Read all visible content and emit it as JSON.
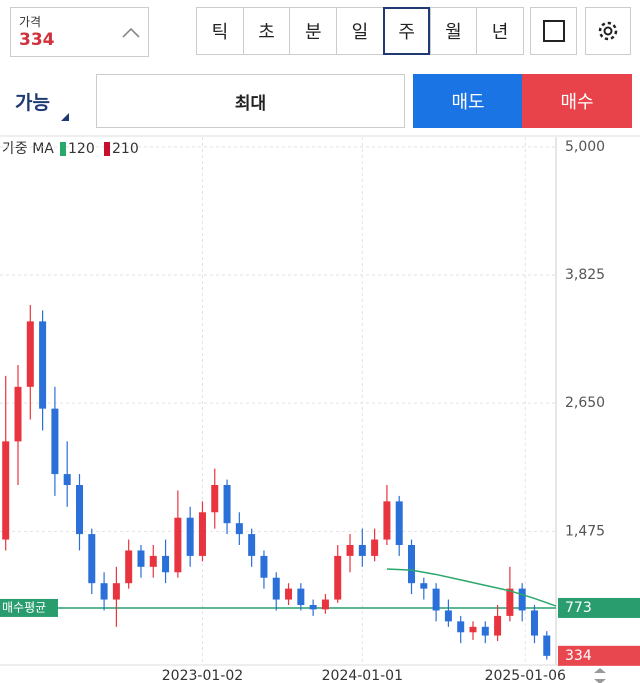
{
  "header": {
    "price_label": "가격",
    "price": "334",
    "intervals": [
      "틱",
      "초",
      "분",
      "일",
      "주",
      "월",
      "년"
    ],
    "selected_interval": 4
  },
  "order": {
    "available": "가능",
    "quantity": "최대",
    "sell": "매도",
    "buy": "매수"
  },
  "chart_data": {
    "type": "candlestick",
    "legend_title": "가중 MA",
    "x": [
      "2021-10-11",
      "2021-11-08",
      "2021-12-06",
      "2022-01-03",
      "2022-01-31",
      "2022-02-28",
      "2022-03-28",
      "2022-04-25",
      "2022-05-23",
      "2022-06-20",
      "2022-07-18",
      "2022-08-15",
      "2022-09-12",
      "2022-10-10",
      "2022-11-07",
      "2022-12-05",
      "2023-01-02",
      "2023-01-30",
      "2023-02-27",
      "2023-03-27",
      "2023-04-24",
      "2023-05-22",
      "2023-06-19",
      "2023-07-17",
      "2023-08-14",
      "2023-09-11",
      "2023-10-09",
      "2023-11-06",
      "2023-12-04",
      "2024-01-01",
      "2024-01-29",
      "2024-02-26",
      "2024-03-25",
      "2024-04-22",
      "2024-05-20",
      "2024-06-17",
      "2024-07-15",
      "2024-08-12",
      "2024-09-09",
      "2024-10-07",
      "2024-11-04",
      "2024-12-02",
      "2024-12-30",
      "2025-01-27",
      "2025-02-24"
    ],
    "open": [
      1400,
      2300,
      2800,
      3400,
      2600,
      2000,
      1900,
      1450,
      1000,
      850,
      1000,
      1300,
      1150,
      1250,
      1100,
      1600,
      1250,
      1650,
      1900,
      1550,
      1450,
      1250,
      1050,
      850,
      950,
      800,
      760,
      850,
      1250,
      1350,
      1250,
      1400,
      1750,
      1350,
      1000,
      950,
      750,
      650,
      550,
      600,
      520,
      700,
      950,
      750,
      520
    ],
    "high": [
      2900,
      3000,
      3550,
      3500,
      2800,
      2300,
      2000,
      1500,
      1100,
      1150,
      1400,
      1350,
      1350,
      1400,
      1850,
      1700,
      1750,
      2050,
      1950,
      1650,
      1500,
      1300,
      1100,
      1000,
      1000,
      850,
      900,
      1350,
      1450,
      1500,
      1500,
      1900,
      1800,
      1400,
      1050,
      1000,
      850,
      700,
      650,
      650,
      800,
      1150,
      1000,
      800,
      560
    ],
    "low": [
      1300,
      1900,
      2500,
      2400,
      1800,
      1700,
      1300,
      900,
      750,
      600,
      950,
      1050,
      1050,
      1000,
      1050,
      1150,
      1200,
      1500,
      1450,
      1350,
      1150,
      950,
      750,
      800,
      750,
      700,
      720,
      820,
      1100,
      1150,
      1200,
      1350,
      1250,
      900,
      850,
      650,
      600,
      450,
      480,
      450,
      470,
      650,
      650,
      450,
      300
    ],
    "close": [
      2300,
      2800,
      3400,
      2600,
      2000,
      1900,
      1450,
      1000,
      850,
      1000,
      1300,
      1150,
      1250,
      1100,
      1600,
      1250,
      1650,
      1900,
      1550,
      1450,
      1250,
      1050,
      850,
      950,
      800,
      760,
      850,
      1250,
      1350,
      1250,
      1400,
      1750,
      1350,
      1000,
      950,
      750,
      650,
      550,
      600,
      520,
      700,
      950,
      750,
      520,
      334
    ],
    "up_color": "#e8343e",
    "down_color": "#2b6fd8",
    "ma": [
      {
        "name": "120",
        "color": "#2aa86c",
        "x": [
          "2024-02-26",
          "2024-04-22",
          "2024-06-17",
          "2024-08-12",
          "2024-10-07",
          "2024-12-02",
          "2025-01-27",
          "2025-03-17"
        ],
        "values": [
          1130,
          1120,
          1080,
          1030,
          980,
          930,
          860,
          790
        ]
      },
      {
        "name": "210",
        "color": "#c8102e",
        "x": [],
        "values": []
      }
    ],
    "avg_price": {
      "label": "매수평균",
      "value": 773,
      "color": "#2a9d6f"
    },
    "current_price": 334,
    "current_color": "#e8474f",
    "xlim": [
      "2021-09-28",
      "2025-03-17"
    ],
    "xticks": [
      "2023-01-02",
      "2024-01-01",
      "2025-01-06"
    ],
    "ylim": [
      250,
      5090
    ],
    "yticks": [
      {
        "value": 1475,
        "label": "1,475"
      },
      {
        "value": 2650,
        "label": "2,650"
      },
      {
        "value": 3825,
        "label": "3,825"
      },
      {
        "value": 5000,
        "label": "5,000"
      }
    ],
    "grid": true
  }
}
